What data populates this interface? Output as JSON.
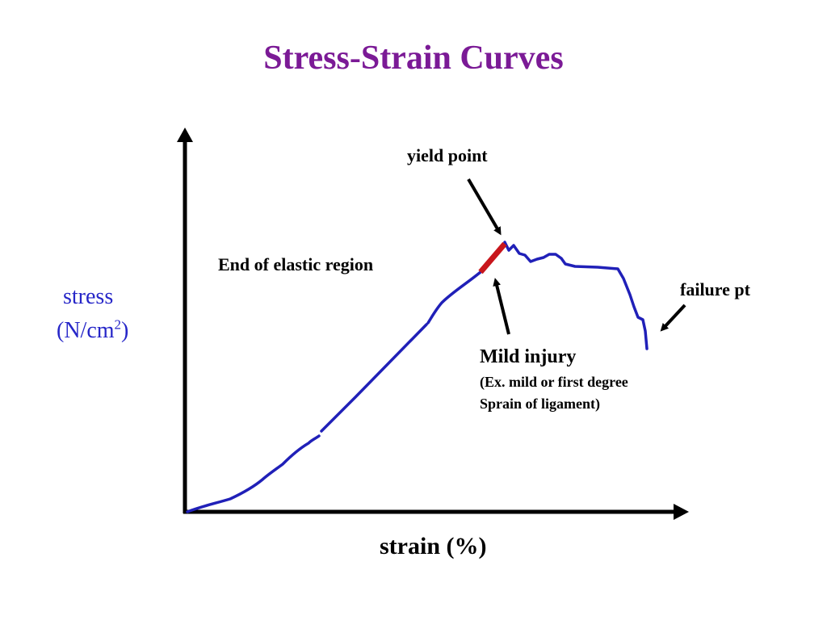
{
  "title": "Stress-Strain Curves",
  "axes": {
    "y_label": "stress",
    "y_unit_prefix": "(N/cm",
    "y_unit_sup": "2",
    "y_unit_suffix": ")",
    "x_label": "strain   (%)"
  },
  "annotations": {
    "yield_point": "yield point",
    "elastic_end": "End of elastic region",
    "failure": "failure pt",
    "injury_title": "Mild injury",
    "injury_line1": "(Ex. mild or first degree",
    "injury_line2": "Sprain of ligament)"
  },
  "colors": {
    "title": "#7b1a96",
    "curve": "#2020b8",
    "highlight": "#c8161c",
    "axis_label": "#2626c8",
    "axes": "#000000"
  }
}
